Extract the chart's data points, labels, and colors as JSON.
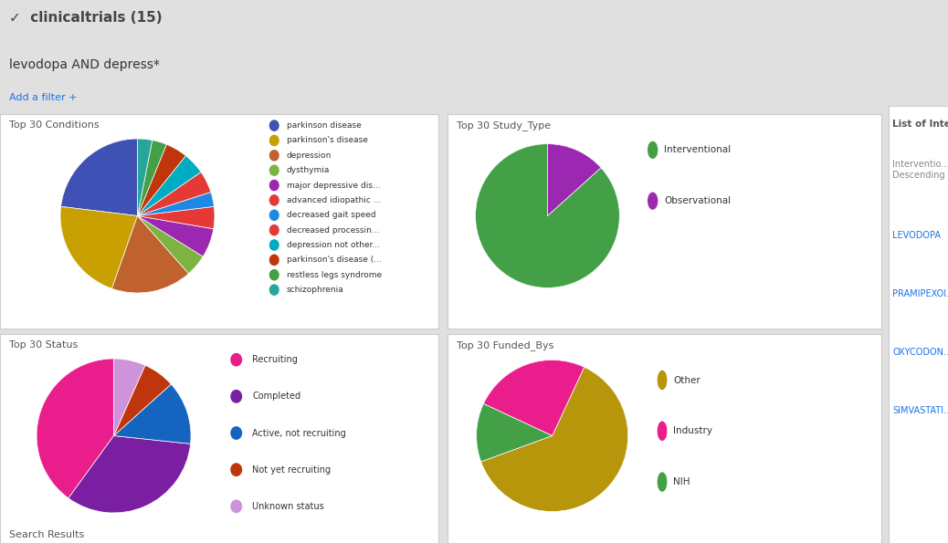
{
  "title": "clinicaltrials (15)",
  "search_term": "levodopa AND depress*",
  "filter_text": "Add a filter +",
  "bg_color": "#e8e8e8",
  "panel_bg": "#ffffff",
  "header_bg": "#f0f0f0",
  "conditions": {
    "title": "Top 30 Conditions",
    "labels": [
      "parkinson disease",
      "parkinson's disease",
      "depression",
      "dysthymia",
      "major depressive dis...",
      "advanced idiopathic ...",
      "decreased gait speed",
      "decreased processin...",
      "depression not other...",
      "parkinson's disease (...",
      "restless legs syndrome",
      "schizophrenia"
    ],
    "values": [
      15,
      14,
      11,
      3,
      4,
      3,
      2,
      3,
      3,
      3,
      2,
      2
    ],
    "colors": [
      "#3f51b5",
      "#c8a000",
      "#c0622e",
      "#7cb341",
      "#9c27b0",
      "#e53935",
      "#1e88e5",
      "#e53935",
      "#00acc1",
      "#bf360c",
      "#43a047",
      "#26a69a"
    ]
  },
  "study_type": {
    "title": "Top 30 Study_Type",
    "labels": [
      "Interventional",
      "Observational"
    ],
    "values": [
      13,
      2
    ],
    "colors": [
      "#43a047",
      "#9c27b0"
    ]
  },
  "status": {
    "title": "Top 30 Status",
    "labels": [
      "Recruiting",
      "Completed",
      "Active, not recruiting",
      "Not yet recruiting",
      "Unknown status"
    ],
    "values": [
      6,
      5,
      2,
      1,
      1
    ],
    "colors": [
      "#e91e8c",
      "#7b1fa2",
      "#1565c0",
      "#bf360c",
      "#ce93d8"
    ]
  },
  "funded_bys": {
    "title": "Top 30 Funded_Bys",
    "labels": [
      "Other",
      "Industry",
      "NIH"
    ],
    "values": [
      10,
      4,
      2
    ],
    "colors": [
      "#b8960c",
      "#e91e8c",
      "#43a047"
    ]
  },
  "right_panel": {
    "title": "List of Interv...",
    "subtitle": "Interventio...\nDescending",
    "items": [
      "LEVODOPA",
      "PRAMIPEXOI...",
      "OXYCODON...",
      "SIMVASTATI..."
    ]
  }
}
